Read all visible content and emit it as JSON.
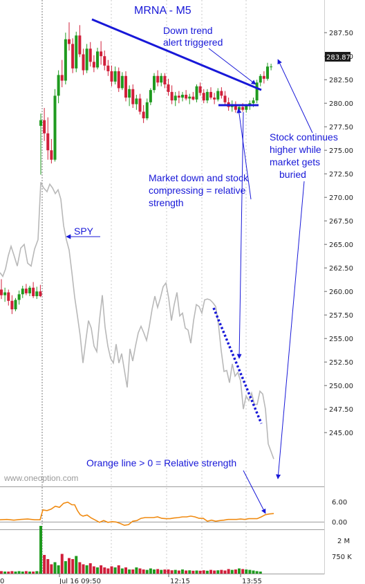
{
  "chart_data": {
    "type": "candlestick",
    "title": "MRNA - M5",
    "last_price_label": "283.87",
    "price_axis": {
      "ylim": [
        242.0,
        289.5
      ],
      "ticks": [
        "287.50",
        "285.00",
        "282.50",
        "280.00",
        "277.50",
        "275.00",
        "272.50",
        "270.00",
        "267.50",
        "265.00",
        "262.50",
        "260.00",
        "257.50",
        "255.00",
        "252.50",
        "250.00",
        "247.50",
        "245.00"
      ]
    },
    "indicator_axis": {
      "ylim": [
        -2.5,
        9.0
      ],
      "ticks": [
        "6.00",
        "0.00"
      ]
    },
    "volume_axis": {
      "ticks": [
        "2 M",
        "750 K"
      ]
    },
    "x_ticks": [
      "0",
      "Jul 16 09:50",
      "12:15",
      "13:55"
    ],
    "watermark": "www.oneoption.com",
    "annotations": {
      "downtrend": "Down trend alert triggered",
      "downtrend_line1": "Down trend",
      "downtrend_line2": "alert triggered",
      "spy": "SPY",
      "compress_line1": "Market down and stock",
      "compress_line2": "compressing = relative",
      "compress_line3": "strength",
      "continues_line1": "Stock continues",
      "continues_line2": "higher while",
      "continues_line3": "market gets",
      "continues_line4": "buried",
      "orange_line": "Orange line > 0 = Relative strength"
    },
    "colors": {
      "up_candle": "#1f9a1f",
      "down_candle": "#d01f3a",
      "spy_line": "#b8b8b8",
      "relative_strength_line": "#f08a10",
      "annotation": "#1818d8"
    },
    "previous_session_candles": [
      {
        "o": 260.2,
        "h": 261.3,
        "l": 259.2,
        "c": 259.6
      },
      {
        "o": 259.6,
        "h": 260.4,
        "l": 258.9,
        "c": 259.9
      },
      {
        "o": 259.9,
        "h": 260.2,
        "l": 258.5,
        "c": 259.0
      },
      {
        "o": 259.0,
        "h": 259.6,
        "l": 257.6,
        "c": 258.1
      },
      {
        "o": 258.1,
        "h": 259.3,
        "l": 257.9,
        "c": 259.1
      },
      {
        "o": 259.1,
        "h": 260.1,
        "l": 258.6,
        "c": 259.7
      },
      {
        "o": 259.7,
        "h": 260.6,
        "l": 259.3,
        "c": 260.3
      },
      {
        "o": 260.3,
        "h": 260.8,
        "l": 259.6,
        "c": 259.8
      },
      {
        "o": 259.8,
        "h": 260.6,
        "l": 259.5,
        "c": 260.4
      },
      {
        "o": 260.4,
        "h": 261.0,
        "l": 259.3,
        "c": 259.5
      },
      {
        "o": 259.5,
        "h": 260.5,
        "l": 259.2,
        "c": 260.0
      },
      {
        "o": 260.0,
        "h": 260.7,
        "l": 259.4,
        "c": 259.5
      }
    ],
    "session_candles": [
      {
        "o": 277.6,
        "h": 278.9,
        "l": 272.4,
        "c": 278.2
      },
      {
        "o": 278.2,
        "h": 279.5,
        "l": 276.0,
        "c": 276.8
      },
      {
        "o": 276.8,
        "h": 278.5,
        "l": 274.0,
        "c": 275.0
      },
      {
        "o": 275.0,
        "h": 276.2,
        "l": 273.6,
        "c": 274.0
      },
      {
        "o": 274.0,
        "h": 281.5,
        "l": 273.8,
        "c": 280.8
      },
      {
        "o": 280.8,
        "h": 283.5,
        "l": 280.0,
        "c": 283.0
      },
      {
        "o": 283.0,
        "h": 284.6,
        "l": 281.7,
        "c": 282.4
      },
      {
        "o": 282.4,
        "h": 287.5,
        "l": 282.0,
        "c": 286.8
      },
      {
        "o": 286.8,
        "h": 288.6,
        "l": 285.6,
        "c": 286.3
      },
      {
        "o": 286.3,
        "h": 286.9,
        "l": 283.2,
        "c": 283.7
      },
      {
        "o": 283.7,
        "h": 287.6,
        "l": 283.3,
        "c": 287.2
      },
      {
        "o": 287.2,
        "h": 288.3,
        "l": 284.9,
        "c": 285.2
      },
      {
        "o": 285.2,
        "h": 285.8,
        "l": 283.0,
        "c": 283.5
      },
      {
        "o": 283.5,
        "h": 286.3,
        "l": 283.2,
        "c": 285.8
      },
      {
        "o": 285.8,
        "h": 286.5,
        "l": 283.9,
        "c": 284.4
      },
      {
        "o": 284.4,
        "h": 285.1,
        "l": 283.3,
        "c": 283.8
      },
      {
        "o": 283.8,
        "h": 285.9,
        "l": 283.6,
        "c": 285.5
      },
      {
        "o": 285.5,
        "h": 286.6,
        "l": 284.1,
        "c": 285.0
      },
      {
        "o": 285.0,
        "h": 285.6,
        "l": 283.5,
        "c": 284.0
      },
      {
        "o": 284.0,
        "h": 284.6,
        "l": 282.9,
        "c": 283.4
      },
      {
        "o": 283.4,
        "h": 284.0,
        "l": 281.8,
        "c": 282.3
      },
      {
        "o": 282.3,
        "h": 283.9,
        "l": 282.0,
        "c": 283.4
      },
      {
        "o": 283.4,
        "h": 283.8,
        "l": 281.2,
        "c": 281.6
      },
      {
        "o": 281.6,
        "h": 283.3,
        "l": 281.4,
        "c": 282.9
      },
      {
        "o": 282.9,
        "h": 283.4,
        "l": 280.2,
        "c": 280.6
      },
      {
        "o": 280.6,
        "h": 281.9,
        "l": 279.7,
        "c": 281.5
      },
      {
        "o": 281.5,
        "h": 282.0,
        "l": 279.5,
        "c": 279.9
      },
      {
        "o": 279.9,
        "h": 280.9,
        "l": 279.3,
        "c": 280.5
      },
      {
        "o": 280.5,
        "h": 281.0,
        "l": 278.8,
        "c": 279.1
      },
      {
        "o": 279.1,
        "h": 279.8,
        "l": 277.9,
        "c": 278.4
      },
      {
        "o": 278.4,
        "h": 280.5,
        "l": 278.2,
        "c": 280.1
      },
      {
        "o": 280.1,
        "h": 281.6,
        "l": 279.8,
        "c": 281.4
      },
      {
        "o": 281.4,
        "h": 283.2,
        "l": 281.1,
        "c": 282.9
      },
      {
        "o": 282.9,
        "h": 283.5,
        "l": 281.8,
        "c": 282.2
      },
      {
        "o": 282.2,
        "h": 283.2,
        "l": 281.8,
        "c": 282.9
      },
      {
        "o": 282.9,
        "h": 283.2,
        "l": 281.6,
        "c": 282.0
      },
      {
        "o": 282.0,
        "h": 282.6,
        "l": 280.8,
        "c": 281.2
      },
      {
        "o": 281.2,
        "h": 281.9,
        "l": 279.9,
        "c": 280.3
      },
      {
        "o": 280.3,
        "h": 281.2,
        "l": 279.7,
        "c": 280.8
      },
      {
        "o": 280.8,
        "h": 281.3,
        "l": 280.0,
        "c": 280.6
      },
      {
        "o": 280.6,
        "h": 281.2,
        "l": 280.2,
        "c": 280.9
      },
      {
        "o": 280.9,
        "h": 281.4,
        "l": 280.3,
        "c": 280.5
      },
      {
        "o": 280.5,
        "h": 281.0,
        "l": 279.9,
        "c": 280.7
      },
      {
        "o": 280.7,
        "h": 281.2,
        "l": 280.3,
        "c": 280.4
      },
      {
        "o": 280.4,
        "h": 282.0,
        "l": 280.1,
        "c": 281.8
      },
      {
        "o": 281.8,
        "h": 282.2,
        "l": 280.8,
        "c": 281.1
      },
      {
        "o": 281.1,
        "h": 281.5,
        "l": 280.0,
        "c": 280.3
      },
      {
        "o": 280.3,
        "h": 281.5,
        "l": 280.0,
        "c": 281.2
      },
      {
        "o": 281.2,
        "h": 281.7,
        "l": 280.4,
        "c": 280.6
      },
      {
        "o": 280.6,
        "h": 281.1,
        "l": 279.9,
        "c": 280.4
      },
      {
        "o": 280.4,
        "h": 281.6,
        "l": 280.2,
        "c": 281.3
      },
      {
        "o": 281.3,
        "h": 281.7,
        "l": 280.5,
        "c": 280.8
      },
      {
        "o": 280.8,
        "h": 281.3,
        "l": 279.8,
        "c": 280.1
      },
      {
        "o": 280.1,
        "h": 280.6,
        "l": 279.2,
        "c": 279.6
      },
      {
        "o": 279.6,
        "h": 280.3,
        "l": 279.1,
        "c": 279.9
      },
      {
        "o": 279.9,
        "h": 280.2,
        "l": 279.0,
        "c": 279.3
      },
      {
        "o": 279.3,
        "h": 279.9,
        "l": 278.9,
        "c": 279.6
      },
      {
        "o": 279.6,
        "h": 280.0,
        "l": 279.1,
        "c": 279.3
      },
      {
        "o": 279.3,
        "h": 279.8,
        "l": 279.0,
        "c": 279.7
      },
      {
        "o": 279.7,
        "h": 280.3,
        "l": 279.3,
        "c": 280.0
      },
      {
        "o": 280.0,
        "h": 280.6,
        "l": 279.6,
        "c": 280.3
      },
      {
        "o": 280.3,
        "h": 282.5,
        "l": 280.0,
        "c": 282.2
      },
      {
        "o": 282.2,
        "h": 283.1,
        "l": 281.8,
        "c": 282.9
      },
      {
        "o": 282.9,
        "h": 283.4,
        "l": 282.1,
        "c": 282.6
      },
      {
        "o": 282.6,
        "h": 284.3,
        "l": 282.4,
        "c": 283.9
      },
      {
        "o": 283.9,
        "h": 284.2,
        "l": 283.5,
        "c": 283.9
      }
    ],
    "spy_line": [
      [
        0,
        262.0
      ],
      [
        4,
        261.6
      ],
      [
        8,
        262.4
      ],
      [
        12,
        263.8
      ],
      [
        16,
        264.8
      ],
      [
        20,
        263.9
      ],
      [
        25,
        262.7
      ],
      [
        30,
        264.6
      ],
      [
        35,
        265.0
      ],
      [
        40,
        263.0
      ],
      [
        45,
        262.7
      ],
      [
        50,
        264.5
      ],
      [
        55,
        265.5
      ],
      [
        59,
        271.6
      ],
      [
        63,
        271.0
      ],
      [
        68,
        270.6
      ],
      [
        72,
        271.4
      ],
      [
        76,
        271.0
      ],
      [
        80,
        270.4
      ],
      [
        84,
        270.8
      ],
      [
        88,
        269.8
      ],
      [
        92,
        267.0
      ],
      [
        96,
        265.5
      ],
      [
        100,
        264.4
      ],
      [
        104,
        262.0
      ],
      [
        108,
        259.4
      ],
      [
        112,
        257.4
      ],
      [
        116,
        255.3
      ],
      [
        120,
        252.4
      ],
      [
        124,
        254.7
      ],
      [
        128,
        256.9
      ],
      [
        132,
        256.1
      ],
      [
        136,
        254.2
      ],
      [
        140,
        253.6
      ],
      [
        144,
        257.0
      ],
      [
        148,
        259.6
      ],
      [
        152,
        256.2
      ],
      [
        156,
        254.2
      ],
      [
        160,
        252.9
      ],
      [
        164,
        252.4
      ],
      [
        168,
        254.4
      ],
      [
        172,
        252.4
      ],
      [
        176,
        253.4
      ],
      [
        180,
        251.6
      ],
      [
        184,
        249.8
      ],
      [
        188,
        253.9
      ],
      [
        192,
        252.6
      ],
      [
        196,
        254.2
      ],
      [
        200,
        255.6
      ],
      [
        204,
        256.3
      ],
      [
        208,
        255.6
      ],
      [
        212,
        254.8
      ],
      [
        216,
        256.3
      ],
      [
        220,
        258.1
      ],
      [
        224,
        259.5
      ],
      [
        228,
        258.3
      ],
      [
        232,
        259.3
      ],
      [
        236,
        260.5
      ],
      [
        240,
        260.9
      ],
      [
        244,
        259.3
      ],
      [
        248,
        256.9
      ],
      [
        252,
        258.6
      ],
      [
        256,
        259.9
      ],
      [
        260,
        257.4
      ],
      [
        264,
        257.7
      ],
      [
        268,
        256.1
      ],
      [
        272,
        255.9
      ],
      [
        276,
        254.5
      ],
      [
        280,
        256.9
      ],
      [
        284,
        258.6
      ],
      [
        288,
        258.4
      ],
      [
        292,
        257.7
      ],
      [
        296,
        259.1
      ],
      [
        300,
        259.2
      ],
      [
        304,
        259.1
      ],
      [
        308,
        258.8
      ],
      [
        312,
        258.4
      ],
      [
        316,
        256.5
      ],
      [
        320,
        253.7
      ],
      [
        324,
        251.5
      ],
      [
        328,
        251.6
      ],
      [
        332,
        250.3
      ],
      [
        336,
        252.3
      ],
      [
        340,
        251.0
      ],
      [
        344,
        251.4
      ],
      [
        348,
        250.5
      ],
      [
        352,
        247.5
      ],
      [
        356,
        248.9
      ],
      [
        360,
        248.4
      ],
      [
        364,
        249.2
      ],
      [
        368,
        248.0
      ],
      [
        372,
        248.0
      ],
      [
        376,
        249.4
      ],
      [
        380,
        249.1
      ],
      [
        384,
        247.5
      ],
      [
        388,
        243.8
      ],
      [
        392,
        243.0
      ],
      [
        396,
        242.2
      ]
    ],
    "relative_strength_line": [
      [
        0,
        0.1
      ],
      [
        10,
        0.2
      ],
      [
        20,
        0.0
      ],
      [
        30,
        0.2
      ],
      [
        40,
        0.3
      ],
      [
        50,
        0.1
      ],
      [
        58,
        0.1
      ],
      [
        62,
        2.8
      ],
      [
        68,
        2.6
      ],
      [
        74,
        3.0
      ],
      [
        80,
        3.8
      ],
      [
        86,
        3.5
      ],
      [
        92,
        4.6
      ],
      [
        98,
        4.9
      ],
      [
        104,
        4.2
      ],
      [
        108,
        4.2
      ],
      [
        112,
        2.6
      ],
      [
        116,
        1.5
      ],
      [
        120,
        1.1
      ],
      [
        126,
        1.4
      ],
      [
        132,
        0.6
      ],
      [
        138,
        0.0
      ],
      [
        144,
        -0.6
      ],
      [
        150,
        -0.1
      ],
      [
        156,
        -0.6
      ],
      [
        162,
        -0.4
      ],
      [
        168,
        -0.5
      ],
      [
        174,
        -0.9
      ],
      [
        180,
        -1.4
      ],
      [
        186,
        -1.2
      ],
      [
        192,
        -0.3
      ],
      [
        198,
        -0.1
      ],
      [
        204,
        0.5
      ],
      [
        210,
        0.7
      ],
      [
        216,
        0.7
      ],
      [
        222,
        0.7
      ],
      [
        228,
        0.9
      ],
      [
        234,
        0.5
      ],
      [
        240,
        0.4
      ],
      [
        246,
        0.4
      ],
      [
        252,
        0.6
      ],
      [
        258,
        0.7
      ],
      [
        264,
        0.9
      ],
      [
        270,
        0.9
      ],
      [
        276,
        1.1
      ],
      [
        282,
        0.9
      ],
      [
        288,
        0.5
      ],
      [
        294,
        0.5
      ],
      [
        300,
        -0.3
      ],
      [
        306,
        0.0
      ],
      [
        312,
        -0.3
      ],
      [
        318,
        -0.1
      ],
      [
        324,
        0.0
      ],
      [
        330,
        0.2
      ],
      [
        336,
        0.2
      ],
      [
        342,
        0.2
      ],
      [
        348,
        0.3
      ],
      [
        354,
        0.2
      ],
      [
        360,
        0.4
      ],
      [
        366,
        0.4
      ],
      [
        372,
        0.4
      ],
      [
        378,
        0.9
      ],
      [
        384,
        1.5
      ],
      [
        390,
        1.7
      ],
      [
        396,
        1.8
      ]
    ],
    "volume_bars": [
      0.12,
      0.1,
      0.1,
      0.12,
      0.1,
      0.12,
      0.1,
      0.12,
      0.1,
      0.1,
      0.12,
      0.1,
      2.3,
      0.9,
      0.7,
      0.45,
      0.55,
      0.4,
      0.95,
      0.6,
      0.75,
      0.7,
      0.85,
      0.55,
      0.45,
      0.4,
      0.5,
      0.35,
      0.3,
      0.4,
      0.3,
      0.25,
      0.35,
      0.3,
      0.4,
      0.25,
      0.3,
      0.2,
      0.2,
      0.3,
      0.25,
      0.2,
      0.18,
      0.25,
      0.2,
      0.22,
      0.18,
      0.2,
      0.2,
      0.16,
      0.18,
      0.15,
      0.2,
      0.15,
      0.16,
      0.14,
      0.15,
      0.14,
      0.16,
      0.14,
      0.18,
      0.15,
      0.16,
      0.18,
      0.15,
      0.22,
      0.18,
      0.2,
      0.25,
      0.22,
      0.2,
      0.18,
      0.15,
      0.12,
      0.1
    ]
  }
}
